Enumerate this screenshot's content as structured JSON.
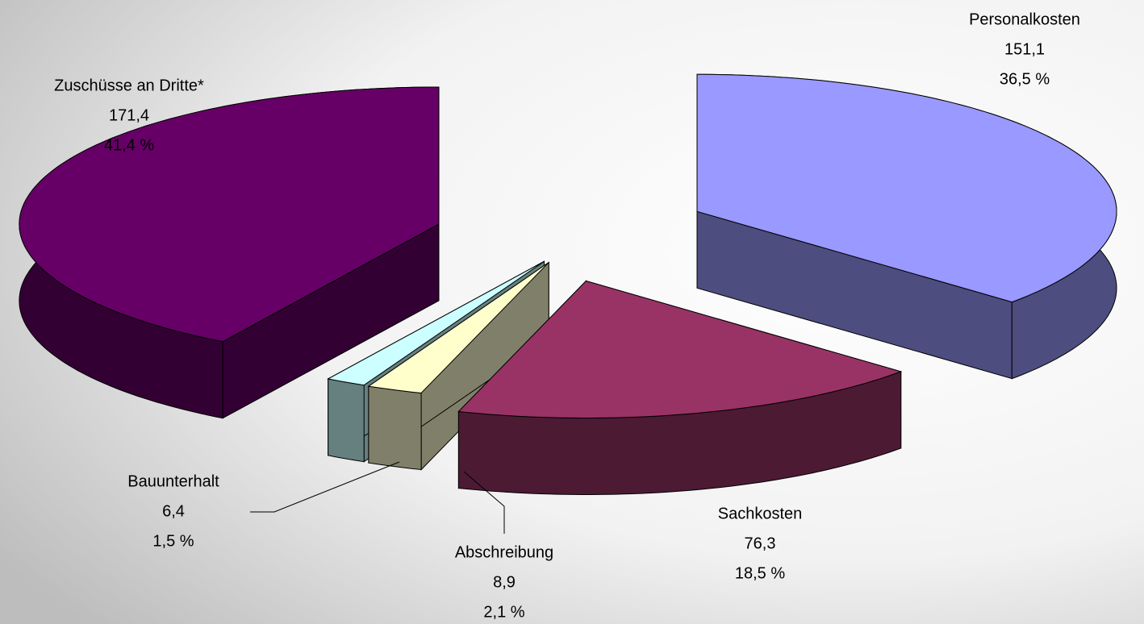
{
  "chart_data": {
    "type": "pie3d",
    "categories": [
      "Personalkosten",
      "Sachkosten",
      "Abschreibung",
      "Bauunterhalt",
      "Zuschüsse an Dritte*"
    ],
    "values": [
      151.1,
      76.3,
      8.9,
      6.4,
      171.4
    ],
    "value_labels": [
      "151,1",
      "76,3",
      "8,9",
      "6,4",
      "171,4"
    ],
    "percents": [
      36.5,
      18.5,
      2.1,
      1.5,
      41.4
    ],
    "percent_labels": [
      "36,5 %",
      "18,5 %",
      "2,1 %",
      "1,5 %",
      "41,4 %"
    ],
    "colors": [
      "#9999ff",
      "#993366",
      "#ffffcc",
      "#ccffff",
      "#660066"
    ],
    "side_colors": [
      "#4d4d80",
      "#4d1a33",
      "#80806a",
      "#668080",
      "#330033"
    ]
  }
}
